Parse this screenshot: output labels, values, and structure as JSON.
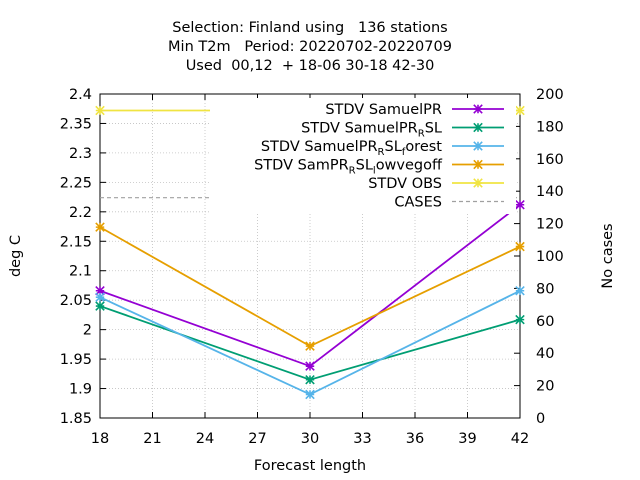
{
  "chart_data": {
    "type": "line",
    "title_lines": [
      "Selection: Finland using   136 stations",
      "Min T2m   Period: 20220702-20220709",
      "Used  00,12  + 18-06 30-18 42-30"
    ],
    "xlabel": "Forecast length",
    "ylabel": "deg C",
    "y2label": "No cases",
    "x": [
      18,
      30,
      42
    ],
    "xticks": [
      18,
      21,
      24,
      27,
      30,
      33,
      36,
      39,
      42
    ],
    "xlim": [
      18,
      42
    ],
    "ylim": [
      1.85,
      2.4
    ],
    "yticks": [
      1.85,
      1.9,
      1.95,
      2.0,
      2.05,
      2.1,
      2.15,
      2.2,
      2.25,
      2.3,
      2.35,
      2.4
    ],
    "ytick_labels": [
      "1.85",
      "1.9",
      "1.95",
      "2",
      "2.05",
      "2.1",
      "2.15",
      "2.2",
      "2.25",
      "2.3",
      "2.35",
      "2.4"
    ],
    "y2lim": [
      0,
      200
    ],
    "y2ticks": [
      0,
      20,
      40,
      60,
      80,
      100,
      120,
      140,
      160,
      180,
      200
    ],
    "grid": true,
    "legend_position": "top-right",
    "series": [
      {
        "name": "STDV SamuelPR",
        "label_parts": [
          [
            "STDV SamuelPR",
            ""
          ]
        ],
        "color": "#9400d3",
        "marker": "star",
        "axis": "y1",
        "values": [
          2.066,
          1.938,
          2.212
        ]
      },
      {
        "name": "STDV SamuelPR_RSL",
        "label_parts": [
          [
            "STDV SamuelPR",
            ""
          ],
          [
            "R",
            "sub"
          ],
          [
            "SL",
            ""
          ]
        ],
        "color": "#009e73",
        "marker": "star",
        "axis": "y1",
        "values": [
          2.04,
          1.915,
          2.017
        ]
      },
      {
        "name": "STDV SamuelPR_RSL_forest",
        "label_parts": [
          [
            "STDV SamuelPR",
            ""
          ],
          [
            "R",
            "sub"
          ],
          [
            "SL",
            ""
          ],
          [
            "f",
            "sub"
          ],
          [
            "orest",
            ""
          ]
        ],
        "color": "#56b4e9",
        "marker": "star",
        "axis": "y1",
        "values": [
          2.055,
          1.89,
          2.066
        ]
      },
      {
        "name": "STDV SamPR_RSL_lowvegoff",
        "label_parts": [
          [
            "STDV SamPR",
            ""
          ],
          [
            "R",
            "sub"
          ],
          [
            "SL",
            ""
          ],
          [
            "l",
            "sub"
          ],
          [
            "owvegoff",
            ""
          ]
        ],
        "color": "#e69f00",
        "marker": "star",
        "axis": "y1",
        "values": [
          2.174,
          1.972,
          2.141
        ]
      },
      {
        "name": "STDV OBS",
        "label_parts": [
          [
            "STDV OBS",
            ""
          ]
        ],
        "color": "#f0e442",
        "marker": "star",
        "axis": "y1",
        "values": [
          2.372,
          2.372,
          2.372
        ]
      },
      {
        "name": "CASES",
        "label_parts": [
          [
            "CASES",
            ""
          ]
        ],
        "color": "#a0a0a0",
        "marker": "none",
        "dashed": true,
        "axis": "y2",
        "values": [
          136,
          136,
          136
        ]
      }
    ]
  }
}
